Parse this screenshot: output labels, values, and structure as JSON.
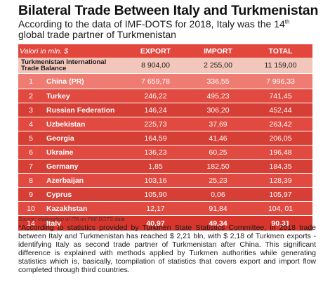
{
  "title": "Bilateral Trade Between Italy and Turkmenistan",
  "subtitle": {
    "before": "According to the data of IMF-DOTS for 2018, Italy was the 14",
    "sup": "th",
    "after": " global trade partner of Turkmenistan"
  },
  "table": {
    "header": {
      "units": "Valori in mln. $",
      "export": "EXPORT",
      "import": "IMPORT",
      "total": "TOTAL"
    },
    "balance": {
      "label": "Turkmenistan International Trade Balance",
      "export": "8 904,00",
      "import": "2 255,00",
      "total": "11 159,00"
    },
    "rows": [
      {
        "rank": "1",
        "country": "China (PR)",
        "export": "7 659,78",
        "import": "336,55",
        "total": "7 996,33"
      },
      {
        "rank": "2",
        "country": "Turkey",
        "export": "246,22",
        "import": "495,23",
        "total": "741,45"
      },
      {
        "rank": "3",
        "country": "Russian Federation",
        "export": "146,24",
        "import": "306,20",
        "total": "452,44"
      },
      {
        "rank": "4",
        "country": "Uzbekistan",
        "export": "225,73",
        "import": "37,69",
        "total": "263,42"
      },
      {
        "rank": "5",
        "country": "Georgia",
        "export": "164,59",
        "import": "41,46",
        "total": "206,05"
      },
      {
        "rank": "6",
        "country": "Ukraine",
        "export": "136,23",
        "import": "60,25",
        "total": "196,48"
      },
      {
        "rank": "7",
        "country": "Germany",
        "export": "1,85",
        "import": "182,50",
        "total": "184,35"
      },
      {
        "rank": "8",
        "country": "Azerbaijan",
        "export": "103,16",
        "import": "25,23",
        "total": "128,39"
      },
      {
        "rank": "9",
        "country": "Cyprus",
        "export": "105,90",
        "import": "0,06",
        "total": "105,97"
      },
      {
        "rank": "10",
        "country": "Kazakhstan",
        "export": "12,17",
        "import": "91,84",
        "total": "104, 01"
      }
    ],
    "italy": {
      "rank": "14",
      "country": "Italy",
      "export": "40,97",
      "import": "49,34",
      "total": "90,31"
    }
  },
  "source": "Source: elaboration of ITA on FMI-DOTS data",
  "note": "*According to statistics provided by Turkmen State Statistics Committee, in 2018 trade between Italy and Turkmenistan has reached $ 2,21 bln, with $ 2,18 of Turkmen exports - identifying Italy as second trade partner of Turkmenistan after China. This significant difference is explained with methods applied by Turkmen authorities while generating statistics which is, basically, tcompilation of statistics that covers export and import flow completed through third countries.",
  "colors": {
    "header": "#e2463d",
    "balance": "#f3c6bb",
    "row": "#e14a40",
    "china": "#ee7c72",
    "italy": "#d8362c"
  }
}
